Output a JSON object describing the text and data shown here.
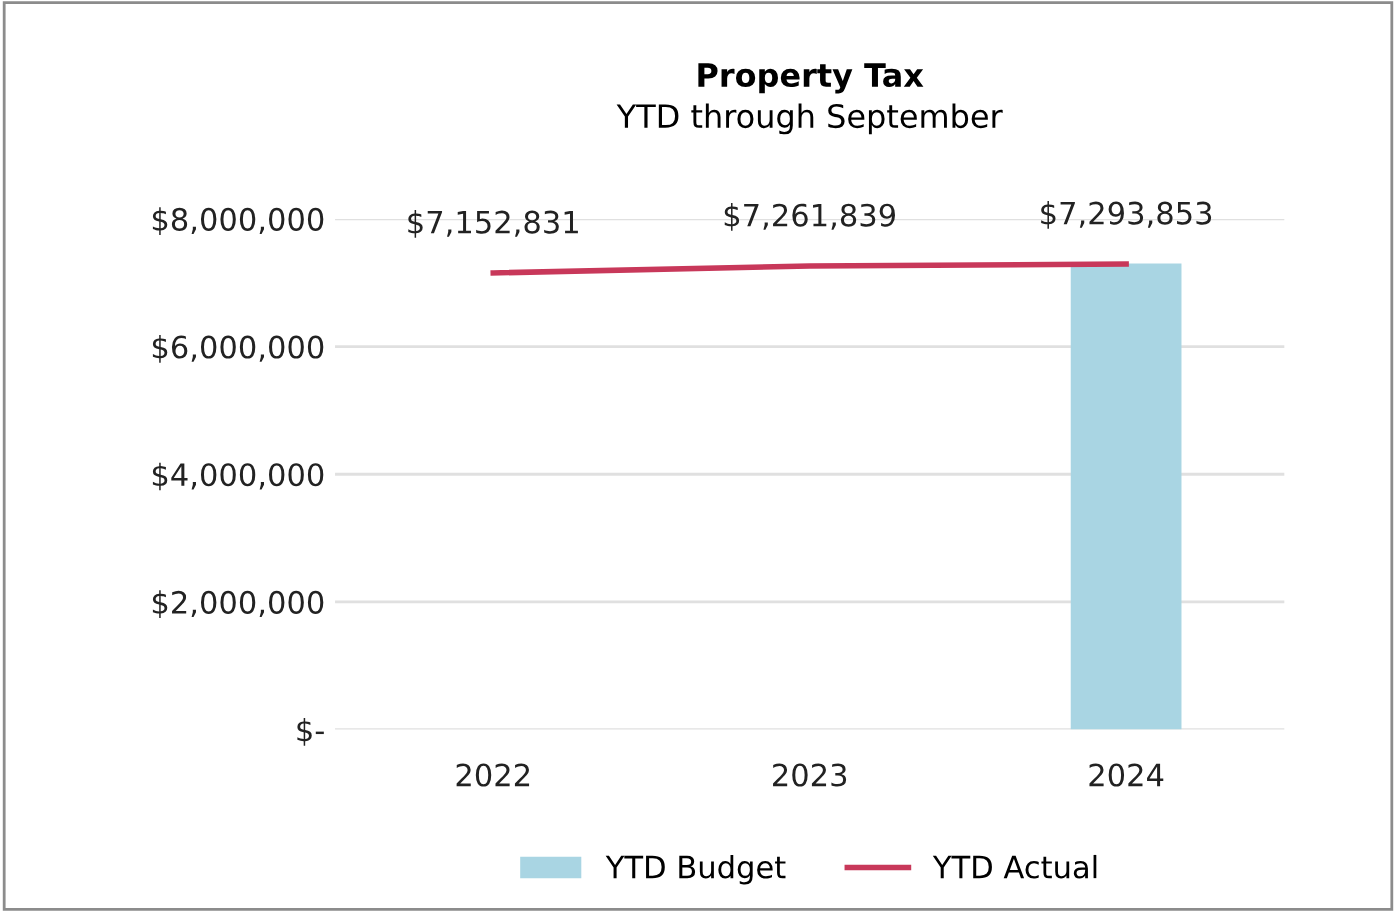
{
  "chart_data": {
    "type": "bar",
    "title": "Property Tax",
    "subtitle": "YTD through September",
    "categories": [
      "2022",
      "2023",
      "2024"
    ],
    "series": [
      {
        "name": "YTD Budget",
        "color": "#a9d5e3",
        "values": [
          null,
          null,
          7300000
        ]
      },
      {
        "name": "YTD Actual",
        "type": "line",
        "color": "#c8385a",
        "values": [
          7152831,
          7261839,
          7293853
        ],
        "value_labels": [
          "$7,152,831",
          "$7,261,839",
          "$7,293,853"
        ]
      }
    ],
    "ylim": [
      0,
      8000000
    ],
    "yticks": [
      {
        "value": 0,
        "label": "$-"
      },
      {
        "value": 2000000,
        "label": "$2,000,000"
      },
      {
        "value": 4000000,
        "label": "$4,000,000"
      },
      {
        "value": 6000000,
        "label": "$6,000,000"
      },
      {
        "value": 8000000,
        "label": "$8,000,000"
      }
    ],
    "grid": "y",
    "legend": "bottom",
    "marker": "none"
  }
}
